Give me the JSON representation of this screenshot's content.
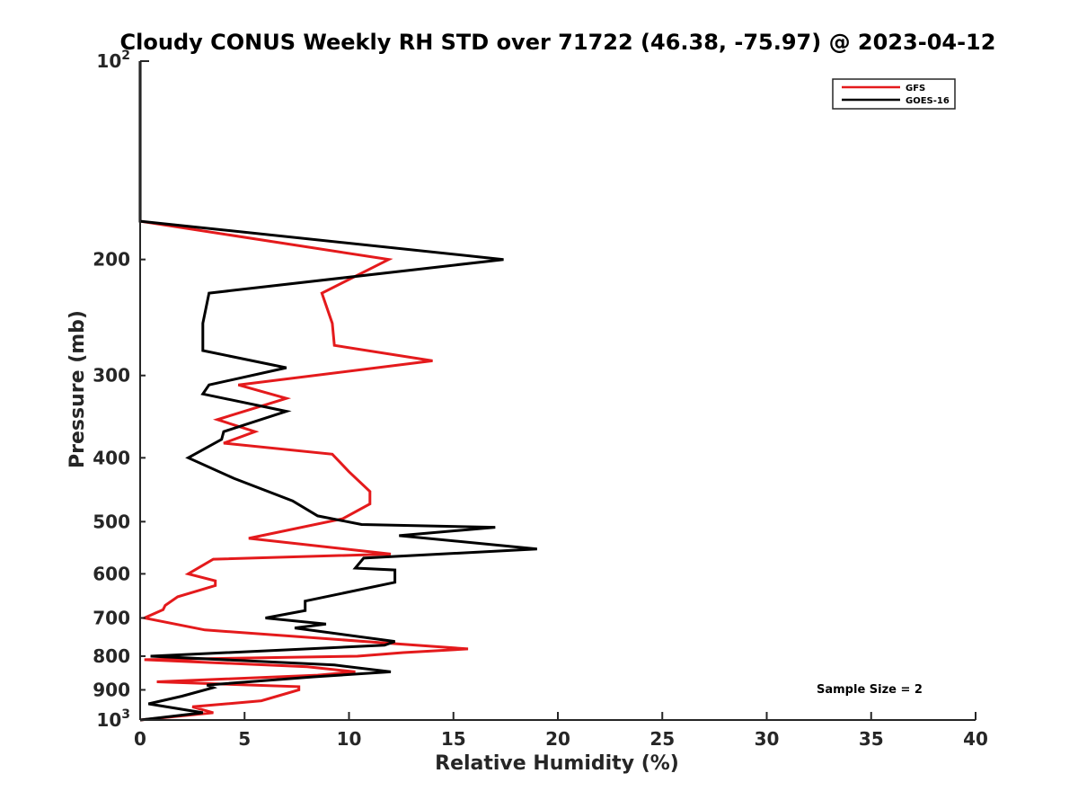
{
  "chart_data": {
    "type": "line",
    "title": "Cloudy CONUS Weekly RH STD over 71722 (46.38, -75.97) @ 2023-04-12",
    "xlabel": "Relative Humidity (%)",
    "ylabel": "Pressure (mb)",
    "xlim": [
      0,
      40
    ],
    "ylim": [
      100,
      1000
    ],
    "yscale": "log",
    "y_reversed": true,
    "xticks": [
      0,
      5,
      10,
      15,
      20,
      25,
      30,
      35,
      40
    ],
    "xtick_labels": [
      "0",
      "5",
      "10",
      "15",
      "20",
      "25",
      "30",
      "35",
      "40"
    ],
    "yticks": [
      200,
      300,
      400,
      500,
      600,
      700,
      800,
      900
    ],
    "ytick_labels": [
      "200",
      "300",
      "400",
      "500",
      "600",
      "700",
      "800",
      "900"
    ],
    "y_top_label": {
      "base": "10",
      "exp": "2"
    },
    "y_bottom_label": {
      "base": "10",
      "exp": "3"
    },
    "legend": {
      "position": "top-right",
      "entries": [
        "GFS",
        "GOES-16"
      ]
    },
    "annotation": "Sample Size = 2",
    "series": [
      {
        "name": "GFS",
        "color": "#e41a1c",
        "points": [
          [
            0,
            100
          ],
          [
            0,
            125
          ],
          [
            0,
            150
          ],
          [
            0,
            175
          ],
          [
            11.9,
            200
          ],
          [
            8.7,
            225
          ],
          [
            9.2,
            250
          ],
          [
            9.3,
            270
          ],
          [
            14.0,
            285
          ],
          [
            4.7,
            310
          ],
          [
            7.0,
            325
          ],
          [
            3.7,
            350
          ],
          [
            5.5,
            365
          ],
          [
            4.0,
            380
          ],
          [
            9.2,
            395
          ],
          [
            10.0,
            420
          ],
          [
            11.0,
            450
          ],
          [
            11.0,
            470
          ],
          [
            9.7,
            495
          ],
          [
            5.2,
            530
          ],
          [
            12.0,
            560
          ],
          [
            3.5,
            570
          ],
          [
            2.3,
            600
          ],
          [
            3.6,
            615
          ],
          [
            3.6,
            625
          ],
          [
            1.8,
            650
          ],
          [
            1.2,
            670
          ],
          [
            1.1,
            680
          ],
          [
            0.2,
            700
          ],
          [
            3.1,
            730
          ],
          [
            12.0,
            765
          ],
          [
            15.7,
            780
          ],
          [
            12.6,
            790
          ],
          [
            10.4,
            800
          ],
          [
            0.2,
            810
          ],
          [
            8.0,
            830
          ],
          [
            10.3,
            845
          ],
          [
            8.5,
            855
          ],
          [
            0.8,
            875
          ],
          [
            7.6,
            890
          ],
          [
            7.6,
            900
          ],
          [
            5.8,
            935
          ],
          [
            2.5,
            955
          ],
          [
            3.5,
            975
          ],
          [
            0,
            1000
          ]
        ]
      },
      {
        "name": "GOES-16",
        "color": "#000000",
        "points": [
          [
            0,
            100
          ],
          [
            0,
            125
          ],
          [
            0,
            150
          ],
          [
            0,
            175
          ],
          [
            17.4,
            200
          ],
          [
            3.3,
            225
          ],
          [
            3.0,
            250
          ],
          [
            3.0,
            275
          ],
          [
            7.0,
            292
          ],
          [
            3.3,
            310
          ],
          [
            3.0,
            320
          ],
          [
            7.0,
            340
          ],
          [
            4.0,
            365
          ],
          [
            3.9,
            375
          ],
          [
            2.3,
            400
          ],
          [
            4.5,
            430
          ],
          [
            7.3,
            465
          ],
          [
            8.5,
            490
          ],
          [
            10.6,
            505
          ],
          [
            17.0,
            510
          ],
          [
            12.4,
            525
          ],
          [
            19.0,
            550
          ],
          [
            10.7,
            568
          ],
          [
            10.3,
            588
          ],
          [
            12.2,
            592
          ],
          [
            12.2,
            618
          ],
          [
            7.9,
            660
          ],
          [
            7.9,
            682
          ],
          [
            6.0,
            700
          ],
          [
            8.9,
            715
          ],
          [
            7.4,
            725
          ],
          [
            12.2,
            760
          ],
          [
            11.7,
            770
          ],
          [
            0.5,
            800
          ],
          [
            9.3,
            825
          ],
          [
            12.0,
            845
          ],
          [
            8.3,
            860
          ],
          [
            3.2,
            885
          ],
          [
            3.5,
            893
          ],
          [
            2.0,
            920
          ],
          [
            0.4,
            945
          ],
          [
            3.0,
            975
          ],
          [
            0,
            1000
          ]
        ]
      }
    ]
  }
}
